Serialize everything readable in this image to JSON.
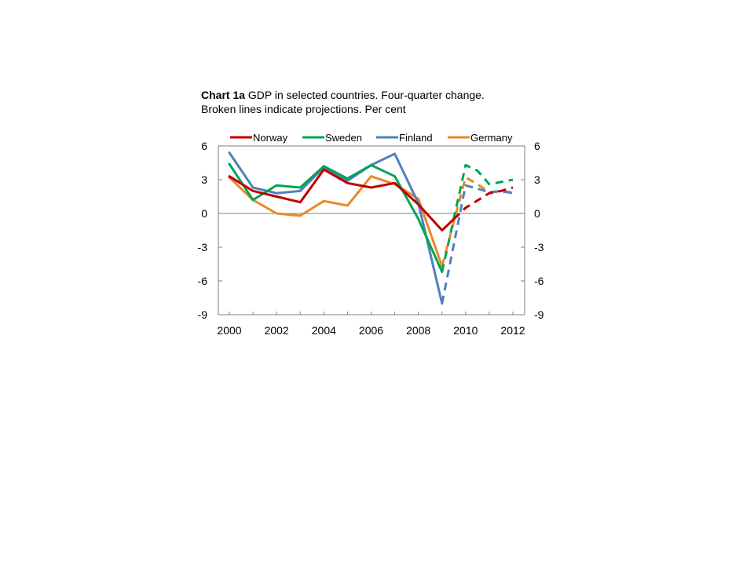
{
  "chart_data": {
    "type": "line",
    "title_bold": "Chart 1a",
    "title": "GDP in selected countries. Four-quarter change.",
    "subtitle": "Broken lines indicate projections. Per cent",
    "xlabel": "",
    "ylabel": "",
    "x_ticks": [
      "2000",
      "2002",
      "2004",
      "2006",
      "2008",
      "2010",
      "2012"
    ],
    "xlim": [
      2000,
      2012
    ],
    "ylim": [
      -9,
      6
    ],
    "y_ticks": [
      6,
      3,
      0,
      -3,
      -6,
      -9
    ],
    "y_tick_labels": [
      "6",
      "3",
      "0",
      "-3",
      "-6",
      "-9"
    ],
    "grid": false,
    "zero_line": true,
    "legend_position": "top",
    "series": [
      {
        "name": "Norway",
        "color": "#C00000",
        "actual": [
          [
            2000,
            3.3
          ],
          [
            2001,
            2.0
          ],
          [
            2002,
            1.5
          ],
          [
            2003,
            1.0
          ],
          [
            2004,
            3.9
          ],
          [
            2005,
            2.7
          ],
          [
            2006,
            2.3
          ],
          [
            2007,
            2.7
          ],
          [
            2008,
            0.8
          ],
          [
            2009,
            -1.5
          ],
          [
            2009.5,
            -0.5
          ]
        ],
        "projection": [
          [
            2009.5,
            -0.5
          ],
          [
            2010,
            0.5
          ],
          [
            2011,
            1.8
          ],
          [
            2011.5,
            2.0
          ],
          [
            2012,
            2.3
          ]
        ]
      },
      {
        "name": "Sweden",
        "color": "#00A650",
        "actual": [
          [
            2000,
            4.4
          ],
          [
            2001,
            1.2
          ],
          [
            2002,
            2.5
          ],
          [
            2003,
            2.3
          ],
          [
            2004,
            4.2
          ],
          [
            2005,
            3.1
          ],
          [
            2006,
            4.3
          ],
          [
            2007,
            3.3
          ],
          [
            2008,
            -0.5
          ],
          [
            2009,
            -5.2
          ]
        ],
        "projection": [
          [
            2009,
            -5.2
          ],
          [
            2010,
            4.3
          ],
          [
            2010.5,
            3.8
          ],
          [
            2011,
            2.6
          ],
          [
            2011.5,
            2.8
          ],
          [
            2012,
            3.0
          ]
        ]
      },
      {
        "name": "Finland",
        "color": "#4F81BD",
        "actual": [
          [
            2000,
            5.4
          ],
          [
            2001,
            2.3
          ],
          [
            2002,
            1.8
          ],
          [
            2003,
            2.0
          ],
          [
            2004,
            4.1
          ],
          [
            2005,
            2.9
          ],
          [
            2006,
            4.3
          ],
          [
            2007,
            5.3
          ],
          [
            2008,
            0.9
          ],
          [
            2009,
            -8.0
          ]
        ],
        "projection": [
          [
            2009,
            -8.0
          ],
          [
            2010,
            2.5
          ],
          [
            2010.5,
            2.2
          ],
          [
            2011,
            1.9
          ],
          [
            2011.5,
            2.0
          ],
          [
            2012,
            1.8
          ]
        ]
      },
      {
        "name": "Germany",
        "color": "#E8892B",
        "actual": [
          [
            2000,
            3.2
          ],
          [
            2001,
            1.2
          ],
          [
            2002,
            0.0
          ],
          [
            2003,
            -0.2
          ],
          [
            2004,
            1.1
          ],
          [
            2005,
            0.7
          ],
          [
            2006,
            3.3
          ],
          [
            2007,
            2.6
          ],
          [
            2008,
            1.3
          ],
          [
            2009,
            -4.7
          ]
        ],
        "projection": [
          [
            2009,
            -4.7
          ],
          [
            2010,
            3.2
          ],
          [
            2010.5,
            2.6
          ],
          [
            2011,
            1.9
          ],
          [
            2012,
            1.9
          ]
        ]
      }
    ]
  }
}
